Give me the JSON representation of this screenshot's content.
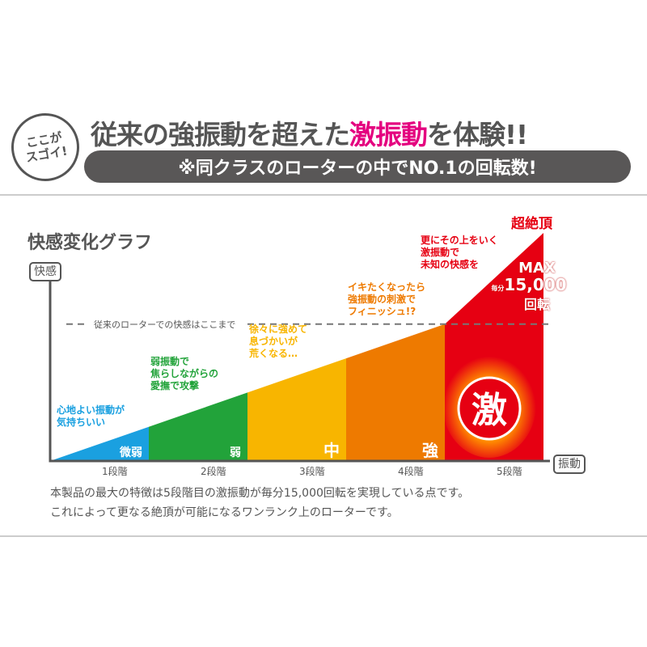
{
  "header": {
    "badge_lines": [
      "ここが",
      "スゴイ!"
    ],
    "headline_pre": "従来の強振動を超えた",
    "headline_highlight": "激振動",
    "headline_post": "を体験!!",
    "subheadline": "※同クラスのローターの中でNO.1の回転数!"
  },
  "colors": {
    "accent_pink": "#e4007f",
    "dark_gray": "#595757",
    "blue": "#1aa0e0",
    "green": "#22a33a",
    "yellow": "#f8b500",
    "orange": "#ee7a00",
    "red": "#e60012"
  },
  "chart_data": {
    "type": "area",
    "title": "快感変化グラフ",
    "ylabel": "快感",
    "xlabel": "振動",
    "categories": [
      "1段階",
      "2段階",
      "3段階",
      "4段階",
      "5段階"
    ],
    "stage_labels": [
      "微弱",
      "弱",
      "中",
      "強",
      "激"
    ],
    "values": [
      0.15,
      0.3,
      0.45,
      0.6,
      1.0
    ],
    "series_colors": [
      "#1aa0e0",
      "#22a33a",
      "#f8b500",
      "#ee7a00",
      "#e60012"
    ],
    "reference_line": {
      "value": 0.6,
      "label": "従来のローターでの快感はここまで"
    },
    "annotations": [
      "心地よい振動が\n気持ちいい",
      "弱振動で\n焦らしながらの\n愛撫で攻撃",
      "徐々に強めて\n息づかいが\n荒くなる…",
      "イキたくなったら\n強振動の刺激で\nフィニッシュ!?",
      "更にその上をいく\n激振動で\n未知の快感を"
    ],
    "peak_label": "超絶頂",
    "max_label": {
      "top": "MAX",
      "prefix": "毎分",
      "value": "15,000",
      "unit": "回転"
    },
    "grid": false
  },
  "description": [
    "本製品の最大の特徴は5段階目の激振動が毎分15,000回転を実現している点です。",
    "これによって更なる絶頂が可能になるワンランク上のローターです。"
  ]
}
